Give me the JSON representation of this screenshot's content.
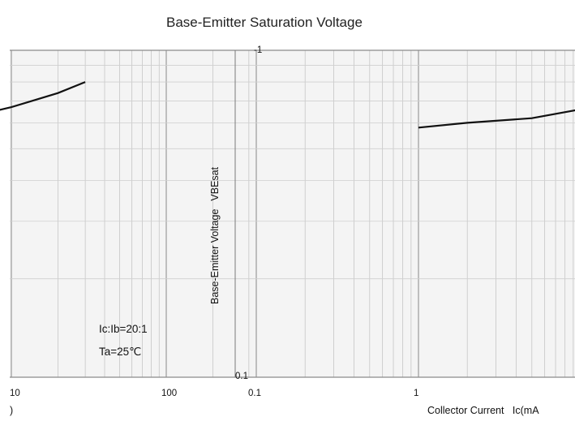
{
  "chart_data": [
    {
      "type": "line",
      "title": "",
      "xlabel": "",
      "ylabel": "",
      "x_scale": "log",
      "x_ticks": [
        "10",
        "100"
      ],
      "annotations": [
        "Ic:Ib=20:1",
        "Ta=25℃"
      ],
      "series": [
        {
          "x": [
            3,
            5,
            10,
            20,
            30
          ],
          "y": [
            0.6,
            0.62,
            0.67,
            0.74,
            0.8
          ]
        }
      ],
      "grid": true
    },
    {
      "type": "line",
      "title": "Base-Emitter Saturation Voltage",
      "xlabel": "Collector Current",
      "xlabel_symbol": "Ic(mA",
      "ylabel": "Base-Emitter Voltage",
      "ylabel_symbol": "VBEsat",
      "x_scale": "log",
      "y_scale": "log",
      "x_ticks": [
        "0.1",
        "1"
      ],
      "y_ticks": [
        "-1",
        "0.1"
      ],
      "series": [
        {
          "x": [
            1,
            2,
            5,
            10,
            20,
            40
          ],
          "y": [
            0.58,
            0.6,
            0.62,
            0.66,
            0.72,
            0.78
          ]
        }
      ],
      "grid": true
    }
  ]
}
